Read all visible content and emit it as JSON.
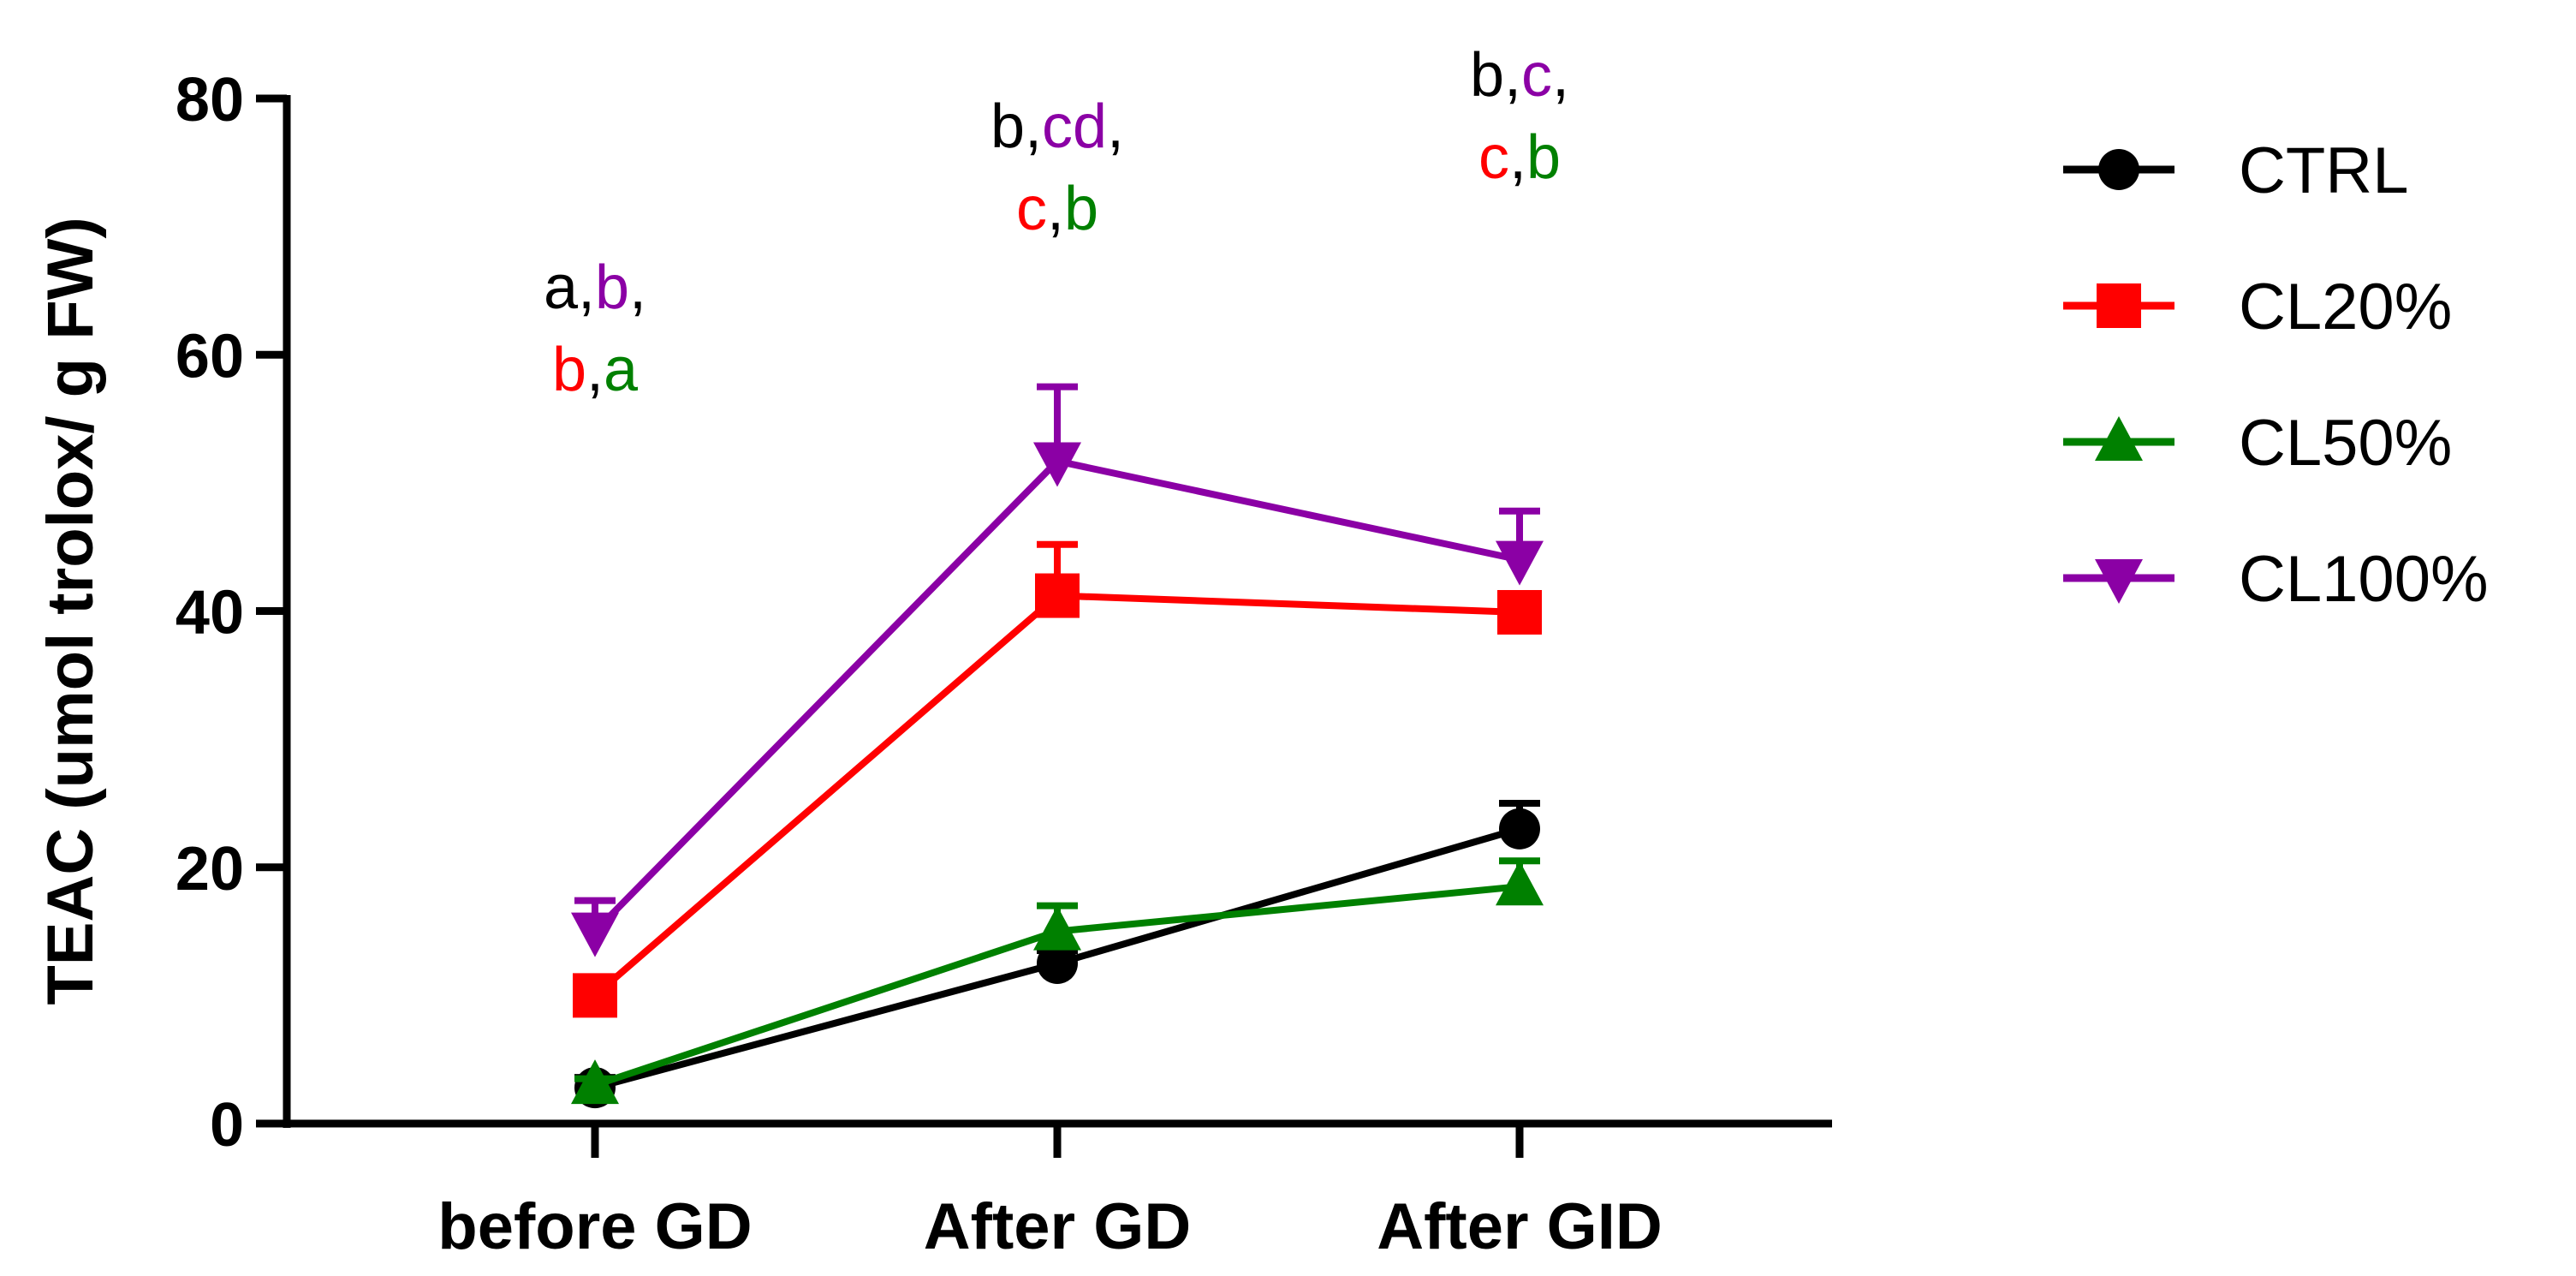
{
  "chart_data": {
    "type": "line",
    "title": "",
    "xlabel": "",
    "ylabel": "TEAC (umol trolox/ g FW)",
    "ylim": [
      0,
      80
    ],
    "yticks": [
      0,
      20,
      40,
      60,
      80
    ],
    "categories": [
      "before GD",
      "After GD",
      "After GID"
    ],
    "legend_position": "right",
    "series": [
      {
        "name": "CTRL",
        "color": "#000000",
        "marker": "circle",
        "values": [
          2.8,
          12.5,
          23.0
        ],
        "errors": [
          0.8,
          1.0,
          2.0
        ]
      },
      {
        "name": "CL20%",
        "color": "#ff0000",
        "marker": "square",
        "values": [
          10.0,
          41.2,
          39.9
        ],
        "errors": [
          0.8,
          4.0,
          1.0
        ]
      },
      {
        "name": "CL50%",
        "color": "#008000",
        "marker": "triangle-up",
        "values": [
          3.0,
          15.0,
          18.5
        ],
        "errors": [
          0.5,
          2.0,
          2.0
        ]
      },
      {
        "name": "CL100%",
        "color": "#8b00a5",
        "marker": "triangle-down",
        "values": [
          15.0,
          51.7,
          44.0
        ],
        "errors": [
          2.4,
          5.8,
          3.8
        ]
      }
    ],
    "annotations": [
      {
        "category": "before GD",
        "lines": [
          [
            {
              "text": "a",
              "color": "#000000"
            },
            {
              "text": ",",
              "color": "#000000"
            },
            {
              "text": "b",
              "color": "#8b00a5"
            },
            {
              "text": ",",
              "color": "#000000"
            }
          ],
          [
            {
              "text": "b",
              "color": "#ff0000"
            },
            {
              "text": ",",
              "color": "#000000"
            },
            {
              "text": "a",
              "color": "#008000"
            }
          ]
        ]
      },
      {
        "category": "After GD",
        "lines": [
          [
            {
              "text": "b",
              "color": "#000000"
            },
            {
              "text": ",",
              "color": "#000000"
            },
            {
              "text": "cd",
              "color": "#8b00a5"
            },
            {
              "text": ",",
              "color": "#000000"
            }
          ],
          [
            {
              "text": "c",
              "color": "#ff0000"
            },
            {
              "text": ",",
              "color": "#000000"
            },
            {
              "text": "b",
              "color": "#008000"
            }
          ]
        ]
      },
      {
        "category": "After GID",
        "lines": [
          [
            {
              "text": "b",
              "color": "#000000"
            },
            {
              "text": ",",
              "color": "#000000"
            },
            {
              "text": "c",
              "color": "#8b00a5"
            },
            {
              "text": ",",
              "color": "#000000"
            }
          ],
          [
            {
              "text": "c",
              "color": "#ff0000"
            },
            {
              "text": ",",
              "color": "#000000"
            },
            {
              "text": "b",
              "color": "#008000"
            }
          ]
        ]
      }
    ]
  }
}
